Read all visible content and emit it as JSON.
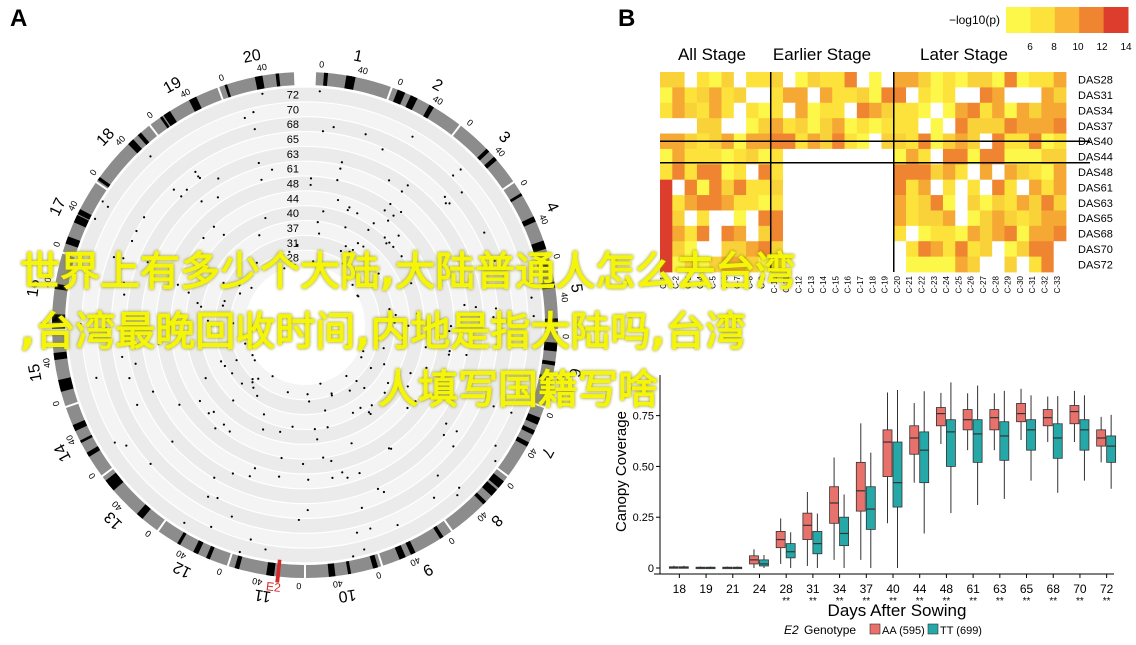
{
  "panel_a": {
    "label": "A",
    "chromosome_labels": [
      "1",
      "2",
      "3",
      "4",
      "5",
      "6",
      "7",
      "8",
      "9",
      "10",
      "11",
      "12",
      "13",
      "14",
      "15",
      "16",
      "17",
      "18",
      "19",
      "20"
    ],
    "chromosome_highlight": "E2",
    "marker_scale": [
      "0",
      "40"
    ],
    "ring_labels": [
      "72",
      "70",
      "68",
      "65",
      "63",
      "61",
      "48",
      "44",
      "40",
      "37",
      "31",
      "28"
    ],
    "colors": {
      "ring_fill": "#ebebeb",
      "ideogram": "#8c8c8c",
      "band": "#000000",
      "highlight": "#d42a2a"
    }
  },
  "panel_b": {
    "label": "B",
    "legend": {
      "title": "−log10(p)",
      "ticks": [
        "6",
        "8",
        "10",
        "12",
        "14"
      ],
      "colors": [
        "#fdf74a",
        "#fde23c",
        "#f9b637",
        "#ef8431",
        "#dc3d2c"
      ]
    },
    "stage_labels": [
      "All Stage",
      "Earlier Stage",
      "Later Stage"
    ],
    "row_labels": [
      "DAS28",
      "DAS31",
      "DAS34",
      "DAS37",
      "DAS40",
      "DAS44",
      "DAS48",
      "DAS61",
      "DAS63",
      "DAS65",
      "DAS68",
      "DAS70",
      "DAS72"
    ],
    "col_labels": [
      "C-1",
      "C-2",
      "C-3",
      "C-4",
      "C-5",
      "C-6",
      "C-7",
      "C-8",
      "C-9",
      "C-10",
      "C-11",
      "C-12",
      "C-13",
      "C-14",
      "C-15",
      "C-16",
      "C-17",
      "C-18",
      "C-19",
      "C-20",
      "C-21",
      "C-22",
      "C-23",
      "C-24",
      "C-25",
      "C-26",
      "C-27",
      "C-28",
      "C-29",
      "C-30",
      "C-31",
      "C-32",
      "C-33"
    ]
  },
  "overlay_text": [
    "世界上有多少个大陆,大陆普通人怎么去台湾",
    ",台湾最晚回收时间,内地是指大陆吗,台湾",
    "人填写国籍写啥"
  ],
  "chart_data": {
    "type": "box",
    "xlabel": "Days After Sowing",
    "ylabel": "Canopy Coverage",
    "categories": [
      "18",
      "19",
      "21",
      "24",
      "28",
      "31",
      "34",
      "37",
      "40",
      "44",
      "48",
      "61",
      "63",
      "65",
      "68",
      "70",
      "72"
    ],
    "significance": [
      "",
      "",
      "",
      "",
      "**",
      "**",
      "**",
      "**",
      "**",
      "**",
      "**",
      "**",
      "**",
      "**",
      "**",
      "**",
      "**"
    ],
    "ylim": [
      0,
      0.95
    ],
    "yticks": [
      0,
      0.25,
      0.5,
      0.75
    ],
    "ytick_labels": [
      "0",
      "0.25",
      "0.50",
      "0.75"
    ],
    "legend": {
      "prefix": "E2",
      "title": "Genotype",
      "entries": [
        "AA (595)",
        "TT (699)"
      ]
    },
    "series": [
      {
        "name": "AA",
        "color": "#e8716c",
        "box": [
          [
            0,
            0.003,
            0.006
          ],
          [
            0,
            0.002,
            0.004
          ],
          [
            0,
            0.002,
            0.004
          ],
          [
            0.02,
            0.04,
            0.06
          ],
          [
            0.1,
            0.14,
            0.18
          ],
          [
            0.14,
            0.21,
            0.27
          ],
          [
            0.22,
            0.32,
            0.4
          ],
          [
            0.28,
            0.38,
            0.52
          ],
          [
            0.45,
            0.62,
            0.68
          ],
          [
            0.56,
            0.64,
            0.7
          ],
          [
            0.7,
            0.76,
            0.79
          ],
          [
            0.68,
            0.73,
            0.78
          ],
          [
            0.68,
            0.74,
            0.78
          ],
          [
            0.72,
            0.76,
            0.81
          ],
          [
            0.7,
            0.74,
            0.78
          ],
          [
            0.71,
            0.77,
            0.8
          ],
          [
            0.6,
            0.64,
            0.68
          ]
        ]
      },
      {
        "name": "TT",
        "color": "#27a8a8",
        "box": [
          [
            0,
            0.003,
            0.006
          ],
          [
            0,
            0.002,
            0.004
          ],
          [
            0,
            0.002,
            0.004
          ],
          [
            0.01,
            0.02,
            0.04
          ],
          [
            0.05,
            0.08,
            0.12
          ],
          [
            0.07,
            0.12,
            0.18
          ],
          [
            0.11,
            0.17,
            0.25
          ],
          [
            0.19,
            0.29,
            0.4
          ],
          [
            0.3,
            0.42,
            0.62
          ],
          [
            0.42,
            0.58,
            0.67
          ],
          [
            0.5,
            0.67,
            0.73
          ],
          [
            0.52,
            0.66,
            0.73
          ],
          [
            0.53,
            0.65,
            0.72
          ],
          [
            0.58,
            0.68,
            0.73
          ],
          [
            0.54,
            0.64,
            0.71
          ],
          [
            0.58,
            0.68,
            0.73
          ],
          [
            0.52,
            0.6,
            0.65
          ]
        ]
      }
    ]
  }
}
